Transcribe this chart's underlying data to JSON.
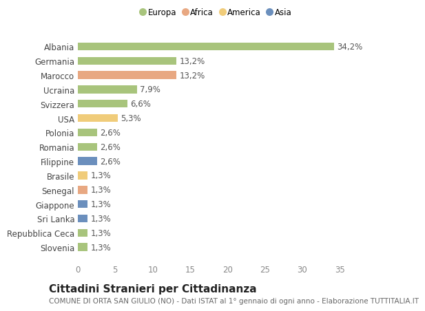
{
  "countries": [
    "Albania",
    "Germania",
    "Marocco",
    "Ucraina",
    "Svizzera",
    "USA",
    "Polonia",
    "Romania",
    "Filippine",
    "Brasile",
    "Senegal",
    "Giappone",
    "Sri Lanka",
    "Repubblica Ceca",
    "Slovenia"
  ],
  "values": [
    34.2,
    13.2,
    13.2,
    7.9,
    6.6,
    5.3,
    2.6,
    2.6,
    2.6,
    1.3,
    1.3,
    1.3,
    1.3,
    1.3,
    1.3
  ],
  "labels": [
    "34,2%",
    "13,2%",
    "13,2%",
    "7,9%",
    "6,6%",
    "5,3%",
    "2,6%",
    "2,6%",
    "2,6%",
    "1,3%",
    "1,3%",
    "1,3%",
    "1,3%",
    "1,3%",
    "1,3%"
  ],
  "colors": [
    "#a8c47c",
    "#a8c47c",
    "#e8a882",
    "#a8c47c",
    "#a8c47c",
    "#f0cc7a",
    "#a8c47c",
    "#a8c47c",
    "#6b8fbd",
    "#f0cc7a",
    "#e8a882",
    "#6b8fbd",
    "#6b8fbd",
    "#a8c47c",
    "#a8c47c"
  ],
  "legend_labels": [
    "Europa",
    "Africa",
    "America",
    "Asia"
  ],
  "legend_colors": [
    "#a8c47c",
    "#e8a882",
    "#f0cc7a",
    "#6b8fbd"
  ],
  "xlim": [
    0,
    37
  ],
  "xticks": [
    0,
    5,
    10,
    15,
    20,
    25,
    30,
    35
  ],
  "title": "Cittadini Stranieri per Cittadinanza",
  "subtitle": "COMUNE DI ORTA SAN GIULIO (NO) - Dati ISTAT al 1° gennaio di ogni anno - Elaborazione TUTTITALIA.IT",
  "background_color": "#ffffff",
  "bar_height": 0.55,
  "label_fontsize": 8.5,
  "tick_fontsize": 8.5,
  "title_fontsize": 11,
  "subtitle_fontsize": 7.5
}
